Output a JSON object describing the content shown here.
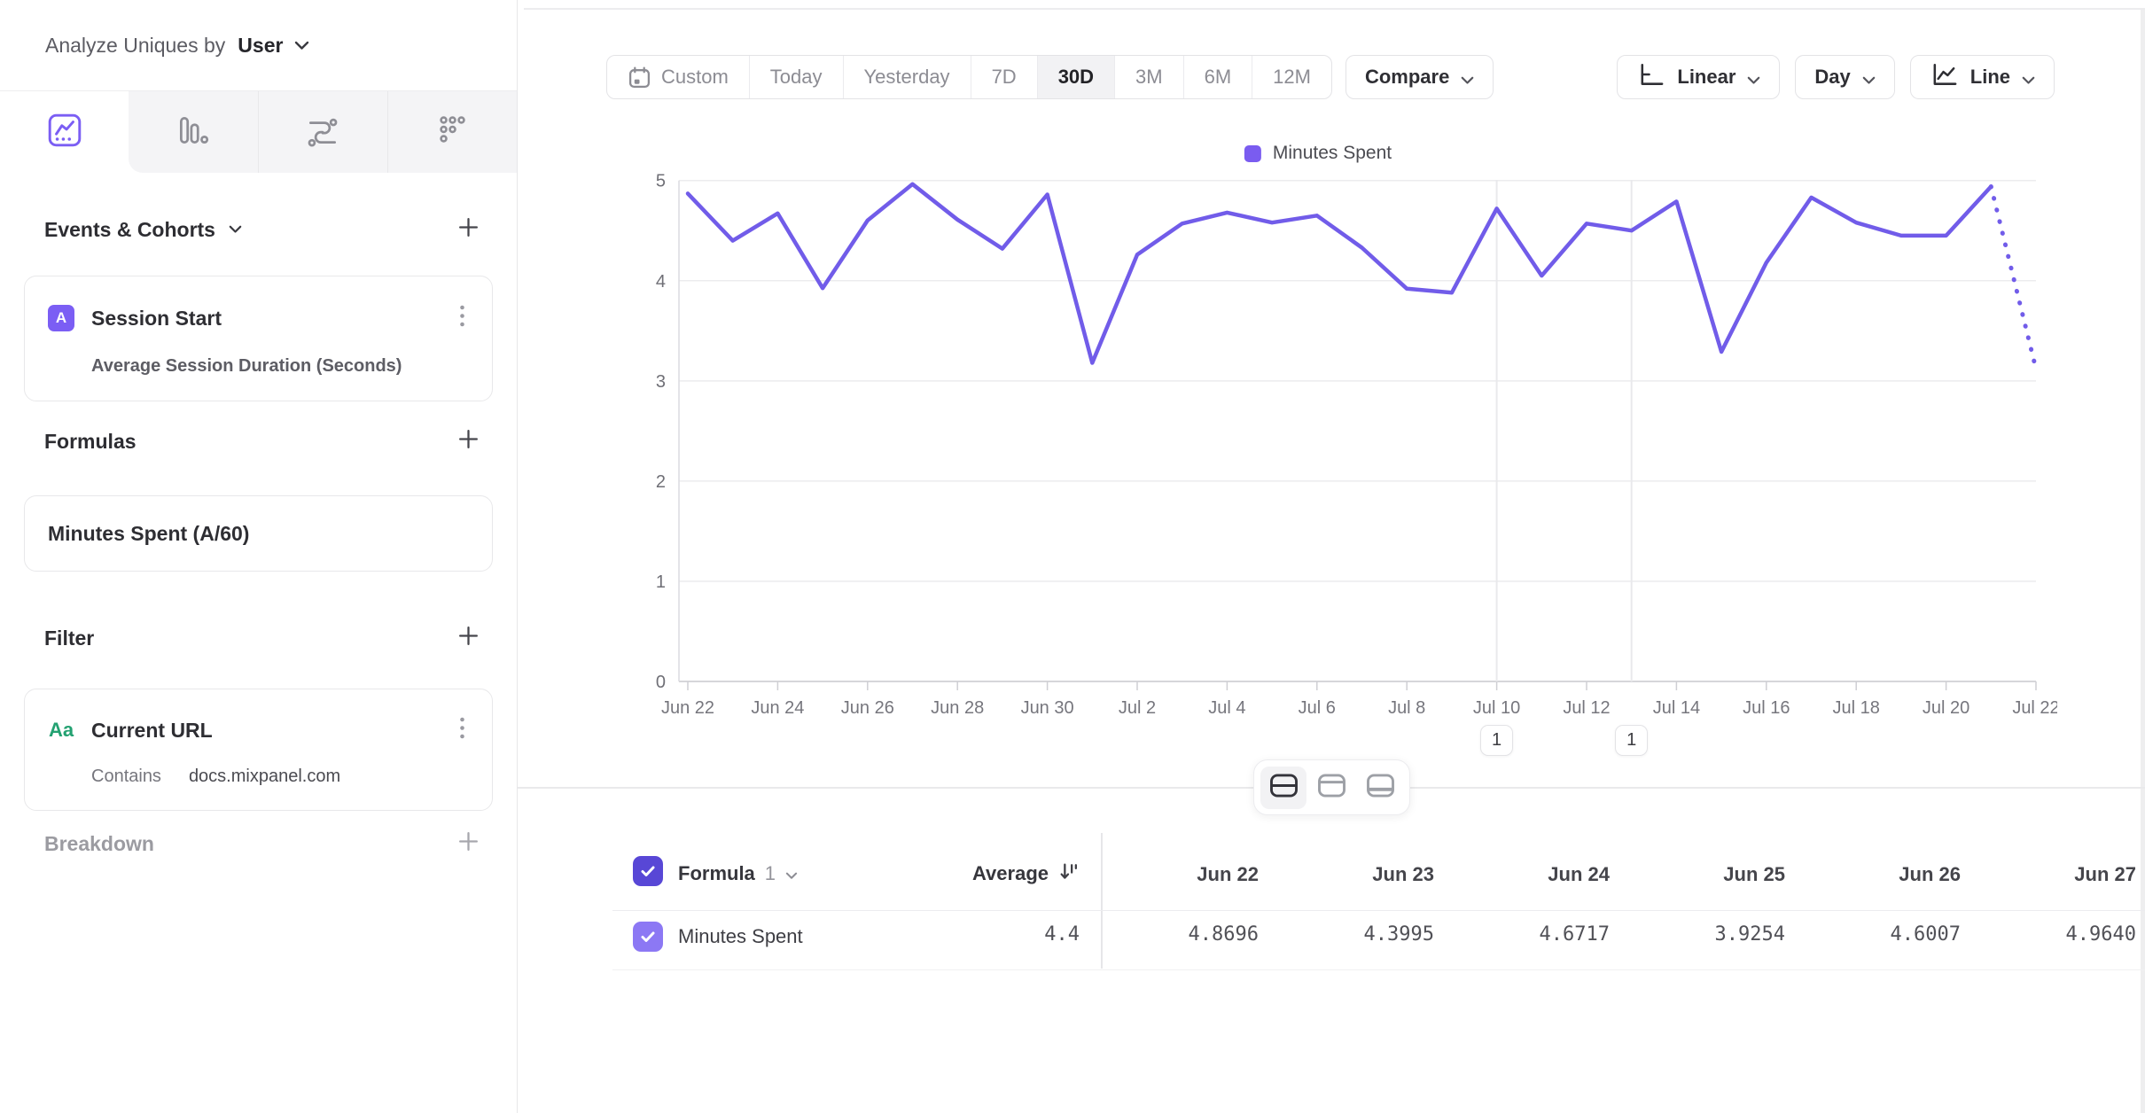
{
  "sidebar": {
    "analyze_label": "Analyze Uniques by",
    "analyze_value": "User",
    "tabs": [
      "insights-line-chart",
      "bar-chart",
      "flows",
      "retention-grid"
    ],
    "active_tab": "insights-line-chart",
    "events_section_title": "Events & Cohorts",
    "event_card": {
      "badge": "A",
      "title": "Session Start",
      "subtitle": "Average Session Duration (Seconds)"
    },
    "formulas_section_title": "Formulas",
    "formula_card": {
      "title": "Minutes Spent (A/60)"
    },
    "filter_section_title": "Filter",
    "filter_card": {
      "badge": "Aa",
      "title": "Current URL",
      "operator": "Contains",
      "value": "docs.mixpanel.com"
    },
    "breakdown_section_title": "Breakdown"
  },
  "toolbar": {
    "date_ranges": [
      "Custom",
      "Today",
      "Yesterday",
      "7D",
      "30D",
      "3M",
      "6M",
      "12M"
    ],
    "active_range": "30D",
    "compare_label": "Compare",
    "scale_label": "Linear",
    "interval_label": "Day",
    "chart_type_label": "Line"
  },
  "chart_data": {
    "type": "line",
    "title": "",
    "legend": [
      "Minutes Spent"
    ],
    "legend_position": "top-center",
    "grid": true,
    "ylim": [
      0,
      5
    ],
    "yticks": [
      0,
      1,
      2,
      3,
      4,
      5
    ],
    "x_tick_every": 2,
    "x": [
      "Jun 22",
      "Jun 23",
      "Jun 24",
      "Jun 25",
      "Jun 26",
      "Jun 27",
      "Jun 28",
      "Jun 29",
      "Jun 30",
      "Jul 1",
      "Jul 2",
      "Jul 3",
      "Jul 4",
      "Jul 5",
      "Jul 6",
      "Jul 7",
      "Jul 8",
      "Jul 9",
      "Jul 10",
      "Jul 11",
      "Jul 12",
      "Jul 13",
      "Jul 14",
      "Jul 15",
      "Jul 16",
      "Jul 17",
      "Jul 18",
      "Jul 19",
      "Jul 20",
      "Jul 21",
      "Jul 22"
    ],
    "series": [
      {
        "name": "Minutes Spent",
        "color": "#715ce9",
        "values": [
          4.8696,
          4.3995,
          4.6717,
          3.9254,
          4.6007,
          4.964,
          4.61,
          4.32,
          4.86,
          3.18,
          4.26,
          4.57,
          4.68,
          4.58,
          4.65,
          4.33,
          3.92,
          3.88,
          4.72,
          4.05,
          4.57,
          4.5,
          4.79,
          3.29,
          4.18,
          4.83,
          4.58,
          4.45,
          4.45,
          4.94,
          3.12
        ]
      }
    ],
    "incomplete_from_index": 29
  },
  "annotations": [
    {
      "date": "Jul 10",
      "count": "1"
    },
    {
      "date": "Jul 13",
      "count": "1"
    }
  ],
  "view_toggle": {
    "options": [
      "split-view",
      "chart-only-view",
      "table-only-view"
    ],
    "active": "split-view"
  },
  "table": {
    "group_label": "Formula",
    "group_number": "1",
    "average_label": "Average",
    "columns": [
      "Jun 22",
      "Jun 23",
      "Jun 24",
      "Jun 25",
      "Jun 26",
      "Jun 27"
    ],
    "rows": [
      {
        "name": "Minutes Spent",
        "average": "4.4",
        "values": [
          "4.8696",
          "4.3995",
          "4.6717",
          "3.9254",
          "4.6007",
          "4.9640"
        ]
      }
    ]
  },
  "colors": {
    "accent_line": "#715ce9",
    "legend_swatch": "#7a5cf0",
    "event_badge": "#7b5ef4",
    "checkbox_header": "#5847d6",
    "checkbox_row": "#8c78f4",
    "filter_badge_green": "#23a171"
  }
}
